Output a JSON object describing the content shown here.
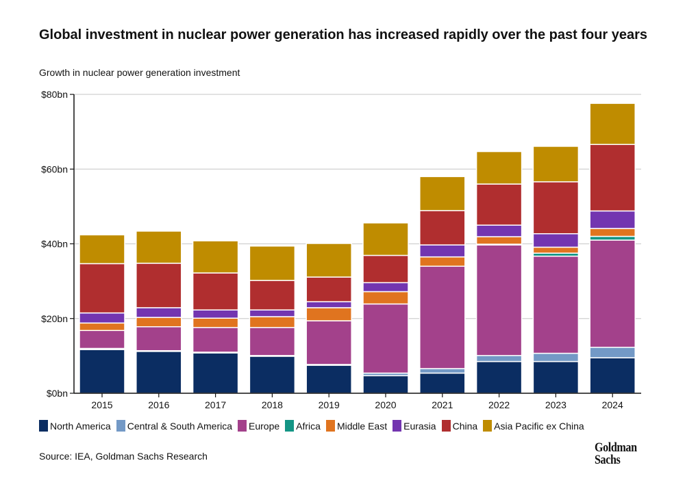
{
  "title": "Global investment in nuclear power generation has increased rapidly over the past four years",
  "subtitle": "Growth in nuclear power generation investment",
  "source": "Source: IEA, Goldman Sachs Research",
  "logo": "Goldman Sachs",
  "chart_data": {
    "type": "bar",
    "stacked": true,
    "ylim": [
      0,
      80
    ],
    "yticks": [
      "$0bn",
      "$20bn",
      "$40bn",
      "$60bn",
      "$80bn"
    ],
    "ytick_values": [
      0,
      20,
      40,
      60,
      80
    ],
    "grid": true,
    "legend_placement": "bottom",
    "categories": [
      "2015",
      "2016",
      "2017",
      "2018",
      "2019",
      "2020",
      "2021",
      "2022",
      "2023",
      "2024"
    ],
    "series": [
      {
        "name": "North America",
        "color": "#0b2d62",
        "values": [
          11.7,
          11.2,
          10.8,
          9.9,
          7.5,
          4.7,
          5.4,
          8.5,
          8.5,
          9.5
        ]
      },
      {
        "name": "Central & South America",
        "color": "#7399c6",
        "values": [
          0.3,
          0.2,
          0.2,
          0.2,
          0.2,
          0.7,
          1.2,
          1.6,
          2.2,
          2.8
        ]
      },
      {
        "name": "Europe",
        "color": "#a3418b",
        "values": [
          4.8,
          6.4,
          6.6,
          7.5,
          11.7,
          18.5,
          27.4,
          29.6,
          26.0,
          28.7
        ]
      },
      {
        "name": "Africa",
        "color": "#149585",
        "values": [
          0,
          0,
          0,
          0,
          0,
          0,
          0,
          0.2,
          0.8,
          1.0
        ]
      },
      {
        "name": "Middle East",
        "color": "#e0741f",
        "values": [
          2.0,
          2.5,
          2.5,
          2.9,
          3.5,
          3.3,
          2.5,
          2.0,
          1.6,
          2.1
        ]
      },
      {
        "name": "Eurasia",
        "color": "#7335b0",
        "values": [
          2.7,
          2.6,
          2.2,
          1.8,
          1.6,
          2.4,
          3.2,
          3.1,
          3.6,
          4.7
        ]
      },
      {
        "name": "China",
        "color": "#b02e2f",
        "values": [
          13.2,
          11.9,
          9.9,
          7.9,
          6.6,
          7.3,
          9.2,
          11.0,
          13.9,
          17.8
        ]
      },
      {
        "name": "Asia Pacific ex China",
        "color": "#bf8c00",
        "values": [
          7.7,
          8.6,
          8.6,
          9.2,
          9.0,
          8.7,
          9.1,
          8.7,
          9.5,
          11.0
        ]
      }
    ]
  }
}
